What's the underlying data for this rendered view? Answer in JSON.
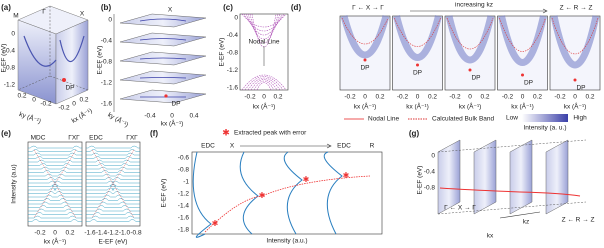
{
  "a": {
    "label": "(a)",
    "corners": [
      "M",
      "Γ",
      "X"
    ],
    "y_axis": "E-EF (eV)",
    "y_ticks": [
      "0",
      "-0.4",
      "-0.8",
      "-1.2"
    ],
    "point": "DP",
    "ky_axis": "ky (Å⁻¹)",
    "kx_axis": "kx (Å⁻¹)",
    "ky_ticks": [
      "0.2",
      "0",
      "-0.2"
    ],
    "kx_ticks": [
      "-0.2",
      "0",
      "0.2"
    ]
  },
  "b": {
    "label": "(b)",
    "top_point": "X",
    "y_axis": "E-EF (eV)",
    "y_ticks": [
      "0",
      "-0.4",
      "-0.8",
      "-1.2",
      "-1.6"
    ],
    "point": "DP",
    "x_axis": "kx (Å⁻¹)",
    "x_ticks": [
      "-0.4",
      "0",
      "0.4"
    ],
    "depth_axis": "ky (Å⁻¹)"
  },
  "c": {
    "label": "(c)",
    "annotation": "Nodal Line",
    "y_axis": "E-EF (eV)",
    "y_ticks": [
      "0",
      "-0.4",
      "-0.8",
      "-1.2",
      "-1.6"
    ],
    "x_ticks": [
      "-0.2",
      "0",
      "0.2"
    ],
    "x_axis": "kx (Å⁻¹)"
  },
  "d": {
    "label": "(d)",
    "left_direction": "Γ ← X → Γ",
    "middle": "increasing kz",
    "right_direction": "Z ← R → Z",
    "panels": [
      {
        "point": "DP",
        "x_ticks": [
          "-0.2",
          "0",
          "0.2"
        ],
        "x_axis": "kx (Å⁻¹)"
      },
      {
        "point": "DP",
        "x_ticks": [
          "-0.2",
          "0",
          "0.2"
        ],
        "x_axis": "kx (Å⁻¹)"
      },
      {
        "point": "DP",
        "x_ticks": [
          "-0.2",
          "0",
          "0.2"
        ],
        "x_axis": "kx (Å⁻¹)"
      },
      {
        "point": "DP",
        "x_ticks": [
          "-0.2",
          "0",
          "0.2"
        ],
        "x_axis": "kx (Å⁻¹)"
      },
      {
        "point": "DP",
        "x_ticks": [
          "-0.2",
          "0",
          "0.2"
        ],
        "x_axis": "kx (Å⁻¹)"
      }
    ]
  },
  "legend": {
    "nodal_line": "Nodal Line",
    "bulk_band": "Calculated Bulk Band",
    "low": "Low",
    "high": "High",
    "intensity": "Intensity (a. u.)"
  },
  "e": {
    "label": "(e)",
    "left_title": "MDC",
    "left_direction": "ΓXΓ",
    "right_title": "EDC",
    "right_direction": "ΓXΓ",
    "y_axis": "Intensity (a.u)",
    "left_x_ticks": [
      "-0.2",
      "0",
      "0.2"
    ],
    "left_x_axis": "kx (Å⁻¹)",
    "right_x_ticks": [
      "-1.6",
      "-1.4",
      "-1.2",
      "-1.0",
      "-0.8"
    ],
    "right_x_axis": "E-EF (eV)"
  },
  "f": {
    "label": "(f)",
    "legend": "Extracted peak with error",
    "start_label": "EDC",
    "start_point": "X",
    "end_label": "EDC",
    "end_point": "R",
    "y_axis": "E-EF (eV)",
    "y_ticks": [
      "-0.6",
      "-0.8",
      "-1",
      "-1.2",
      "-1.4",
      "-1.6",
      "-1.8"
    ],
    "x_axis": "Intensity (a.u.)"
  },
  "g": {
    "label": "(g)",
    "y_axis": "E-EF (eV)",
    "y_ticks": [
      "0",
      "-0.4",
      "-0.8"
    ],
    "front_direction": "Γ ← X → Γ",
    "depth_axis": "kz",
    "back_direction": "Z ← R → Z",
    "x_axis": "kx"
  }
}
